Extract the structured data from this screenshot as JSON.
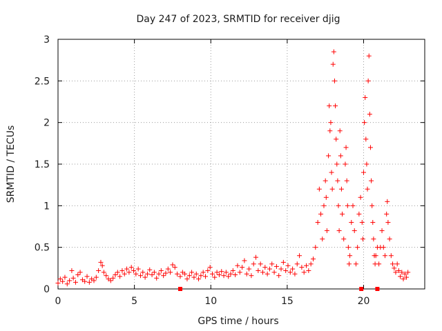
{
  "chart_data": {
    "type": "scatter",
    "title": "Day 247 of 2023, SRMTID for receiver djig",
    "xlabel": "GPS time / hours",
    "ylabel": "SRMTID / TECUs",
    "xlim": [
      0,
      24
    ],
    "ylim": [
      0,
      3
    ],
    "grid": true,
    "marker": "+",
    "color": "#ff0000",
    "x_ticks": [
      {
        "value": 0,
        "label": "0"
      },
      {
        "value": 5,
        "label": "5"
      },
      {
        "value": 10,
        "label": "10"
      },
      {
        "value": 15,
        "label": "15"
      },
      {
        "value": 20,
        "label": "20"
      }
    ],
    "y_ticks": [
      {
        "value": 0,
        "label": "0"
      },
      {
        "value": 0.5,
        "label": "0.5"
      },
      {
        "value": 1,
        "label": "1"
      },
      {
        "value": 1.5,
        "label": "1.5"
      },
      {
        "value": 2,
        "label": "2"
      },
      {
        "value": 2.5,
        "label": "2.5"
      },
      {
        "value": 3,
        "label": "3"
      }
    ],
    "series": [
      {
        "name": "SRMTID",
        "points": [
          [
            0.0,
            0.07
          ],
          [
            0.15,
            0.12
          ],
          [
            0.3,
            0.09
          ],
          [
            0.45,
            0.14
          ],
          [
            0.6,
            0.06
          ],
          [
            0.75,
            0.1
          ],
          [
            0.9,
            0.22
          ],
          [
            1.0,
            0.13
          ],
          [
            1.15,
            0.08
          ],
          [
            1.3,
            0.17
          ],
          [
            1.45,
            0.2
          ],
          [
            1.6,
            0.11
          ],
          [
            1.75,
            0.09
          ],
          [
            1.9,
            0.15
          ],
          [
            2.05,
            0.08
          ],
          [
            2.2,
            0.12
          ],
          [
            2.35,
            0.1
          ],
          [
            2.5,
            0.14
          ],
          [
            2.65,
            0.22
          ],
          [
            2.8,
            0.32
          ],
          [
            2.9,
            0.28
          ],
          [
            3.0,
            0.2
          ],
          [
            3.15,
            0.16
          ],
          [
            3.3,
            0.12
          ],
          [
            3.45,
            0.1
          ],
          [
            3.6,
            0.13
          ],
          [
            3.75,
            0.17
          ],
          [
            3.9,
            0.2
          ],
          [
            4.05,
            0.15
          ],
          [
            4.2,
            0.22
          ],
          [
            4.35,
            0.18
          ],
          [
            4.5,
            0.24
          ],
          [
            4.65,
            0.2
          ],
          [
            4.8,
            0.26
          ],
          [
            4.95,
            0.22
          ],
          [
            5.1,
            0.18
          ],
          [
            5.25,
            0.24
          ],
          [
            5.4,
            0.16
          ],
          [
            5.55,
            0.2
          ],
          [
            5.7,
            0.14
          ],
          [
            5.85,
            0.18
          ],
          [
            6.0,
            0.23
          ],
          [
            6.15,
            0.17
          ],
          [
            6.3,
            0.2
          ],
          [
            6.45,
            0.13
          ],
          [
            6.6,
            0.18
          ],
          [
            6.75,
            0.22
          ],
          [
            6.9,
            0.16
          ],
          [
            7.05,
            0.19
          ],
          [
            7.2,
            0.24
          ],
          [
            7.35,
            0.2
          ],
          [
            7.5,
            0.29
          ],
          [
            7.65,
            0.26
          ],
          [
            7.8,
            0.18
          ],
          [
            8.0,
            0.15
          ],
          [
            8.15,
            0.2
          ],
          [
            8.3,
            0.18
          ],
          [
            8.45,
            0.12
          ],
          [
            8.6,
            0.16
          ],
          [
            8.75,
            0.2
          ],
          [
            8.9,
            0.14
          ],
          [
            9.05,
            0.18
          ],
          [
            9.2,
            0.12
          ],
          [
            9.35,
            0.16
          ],
          [
            9.5,
            0.2
          ],
          [
            9.65,
            0.15
          ],
          [
            9.8,
            0.22
          ],
          [
            9.95,
            0.26
          ],
          [
            10.1,
            0.18
          ],
          [
            10.25,
            0.14
          ],
          [
            10.4,
            0.2
          ],
          [
            10.55,
            0.17
          ],
          [
            10.7,
            0.21
          ],
          [
            10.85,
            0.16
          ],
          [
            11.0,
            0.2
          ],
          [
            11.15,
            0.15
          ],
          [
            11.3,
            0.18
          ],
          [
            11.45,
            0.22
          ],
          [
            11.6,
            0.17
          ],
          [
            11.75,
            0.28
          ],
          [
            11.9,
            0.2
          ],
          [
            12.05,
            0.26
          ],
          [
            12.2,
            0.34
          ],
          [
            12.35,
            0.18
          ],
          [
            12.5,
            0.24
          ],
          [
            12.65,
            0.16
          ],
          [
            12.8,
            0.3
          ],
          [
            12.95,
            0.38
          ],
          [
            13.1,
            0.22
          ],
          [
            13.25,
            0.3
          ],
          [
            13.4,
            0.2
          ],
          [
            13.55,
            0.26
          ],
          [
            13.7,
            0.18
          ],
          [
            13.85,
            0.24
          ],
          [
            14.0,
            0.3
          ],
          [
            14.15,
            0.2
          ],
          [
            14.3,
            0.27
          ],
          [
            14.45,
            0.16
          ],
          [
            14.6,
            0.24
          ],
          [
            14.75,
            0.32
          ],
          [
            14.9,
            0.22
          ],
          [
            15.05,
            0.28
          ],
          [
            15.2,
            0.2
          ],
          [
            15.35,
            0.24
          ],
          [
            15.5,
            0.18
          ],
          [
            15.65,
            0.3
          ],
          [
            15.8,
            0.4
          ],
          [
            15.95,
            0.26
          ],
          [
            16.1,
            0.2
          ],
          [
            16.25,
            0.28
          ],
          [
            16.4,
            0.22
          ],
          [
            16.55,
            0.3
          ],
          [
            16.7,
            0.36
          ],
          [
            16.85,
            0.5
          ],
          [
            17.0,
            0.8
          ],
          [
            17.1,
            1.2
          ],
          [
            17.2,
            0.9
          ],
          [
            17.3,
            0.6
          ],
          [
            17.4,
            1.0
          ],
          [
            17.5,
            1.3
          ],
          [
            17.55,
            1.1
          ],
          [
            17.6,
            0.7
          ],
          [
            17.7,
            1.6
          ],
          [
            17.75,
            2.2
          ],
          [
            17.8,
            1.9
          ],
          [
            17.85,
            2.0
          ],
          [
            17.9,
            1.4
          ],
          [
            17.95,
            1.2
          ],
          [
            18.0,
            2.7
          ],
          [
            18.05,
            2.85
          ],
          [
            18.1,
            2.5
          ],
          [
            18.15,
            2.2
          ],
          [
            18.2,
            1.8
          ],
          [
            18.25,
            1.5
          ],
          [
            18.3,
            1.3
          ],
          [
            18.35,
            1.0
          ],
          [
            18.4,
            0.7
          ],
          [
            18.45,
            1.9
          ],
          [
            18.5,
            1.6
          ],
          [
            18.55,
            1.2
          ],
          [
            18.6,
            0.9
          ],
          [
            18.7,
            0.6
          ],
          [
            18.8,
            1.5
          ],
          [
            18.85,
            1.7
          ],
          [
            18.9,
            1.3
          ],
          [
            18.95,
            1.0
          ],
          [
            19.0,
            0.5
          ],
          [
            19.05,
            0.3
          ],
          [
            19.1,
            0.4
          ],
          [
            19.2,
            0.8
          ],
          [
            19.3,
            1.0
          ],
          [
            19.4,
            0.7
          ],
          [
            19.5,
            0.3
          ],
          [
            19.6,
            0.5
          ],
          [
            19.7,
            0.9
          ],
          [
            19.8,
            1.1
          ],
          [
            19.9,
            0.8
          ],
          [
            19.95,
            0.6
          ],
          [
            20.0,
            1.4
          ],
          [
            20.05,
            2.0
          ],
          [
            20.1,
            2.3
          ],
          [
            20.15,
            1.8
          ],
          [
            20.2,
            1.5
          ],
          [
            20.25,
            1.2
          ],
          [
            20.3,
            2.5
          ],
          [
            20.35,
            2.8
          ],
          [
            20.4,
            2.1
          ],
          [
            20.45,
            1.7
          ],
          [
            20.5,
            1.3
          ],
          [
            20.55,
            1.0
          ],
          [
            20.6,
            0.8
          ],
          [
            20.65,
            0.6
          ],
          [
            20.7,
            0.4
          ],
          [
            20.75,
            0.3
          ],
          [
            20.8,
            0.4
          ],
          [
            20.9,
            0.5
          ],
          [
            21.0,
            0.3
          ],
          [
            21.1,
            0.5
          ],
          [
            21.2,
            0.7
          ],
          [
            21.3,
            0.5
          ],
          [
            21.4,
            0.4
          ],
          [
            21.5,
            0.9
          ],
          [
            21.55,
            1.05
          ],
          [
            21.6,
            0.8
          ],
          [
            21.7,
            0.6
          ],
          [
            21.8,
            0.4
          ],
          [
            21.9,
            0.3
          ],
          [
            22.0,
            0.25
          ],
          [
            22.1,
            0.2
          ],
          [
            22.2,
            0.3
          ],
          [
            22.3,
            0.22
          ],
          [
            22.4,
            0.15
          ],
          [
            22.5,
            0.2
          ],
          [
            22.6,
            0.12
          ],
          [
            22.7,
            0.18
          ],
          [
            22.8,
            0.14
          ],
          [
            22.9,
            0.2
          ]
        ]
      }
    ],
    "markers_on_axis": [
      {
        "x": 8.0,
        "shape": "square"
      },
      {
        "x": 19.85,
        "shape": "square"
      },
      {
        "x": 20.9,
        "shape": "square"
      }
    ]
  }
}
